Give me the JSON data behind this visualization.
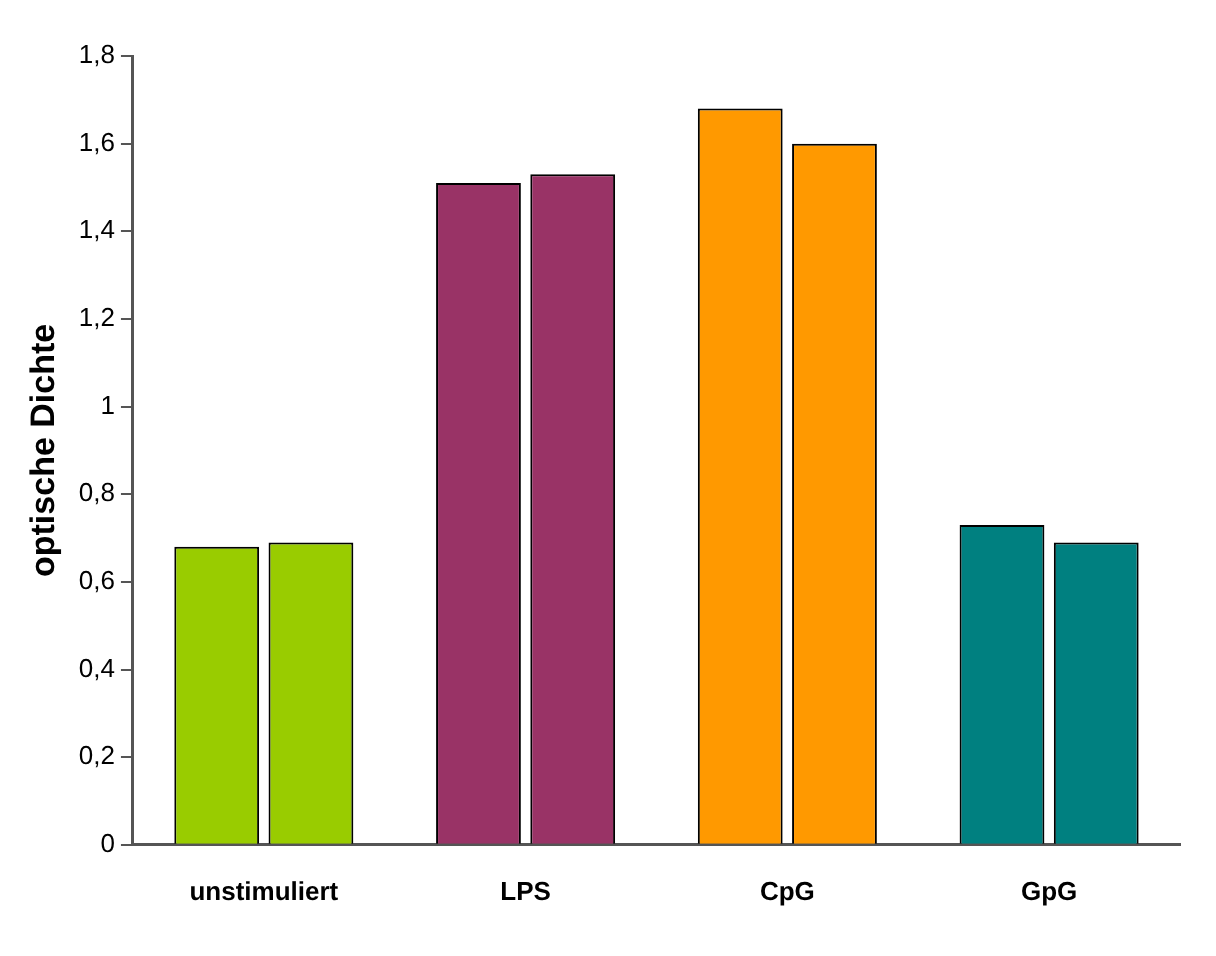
{
  "chart_data": {
    "type": "bar",
    "ylabel": "optische Dichte",
    "categories": [
      "unstimuliert",
      "LPS",
      "CpG",
      "GpG"
    ],
    "series": [
      {
        "colors": [
          "#99cc00",
          "#993366",
          "#ff9900",
          "#008080"
        ],
        "values": [
          0.68,
          1.51,
          1.68,
          0.73
        ]
      },
      {
        "colors": [
          "#99cc00",
          "#993366",
          "#ff9900",
          "#008080"
        ],
        "values": [
          0.69,
          1.53,
          1.6,
          0.69
        ]
      }
    ],
    "ylim": [
      0,
      1.8
    ],
    "yticks": [
      0,
      {
        "value": 0.2,
        "label": "0,2"
      },
      {
        "value": 0.4,
        "label": "0,4"
      },
      {
        "value": 0.6,
        "label": "0,6"
      },
      {
        "value": 0.8,
        "label": "0,8"
      },
      1,
      {
        "value": 1.2,
        "label": "1,2"
      },
      {
        "value": 1.4,
        "label": "1,4"
      },
      {
        "value": 1.6,
        "label": "1,6"
      },
      {
        "value": 1.8,
        "label": "1,8"
      }
    ],
    "grid": false,
    "legend": false
  }
}
